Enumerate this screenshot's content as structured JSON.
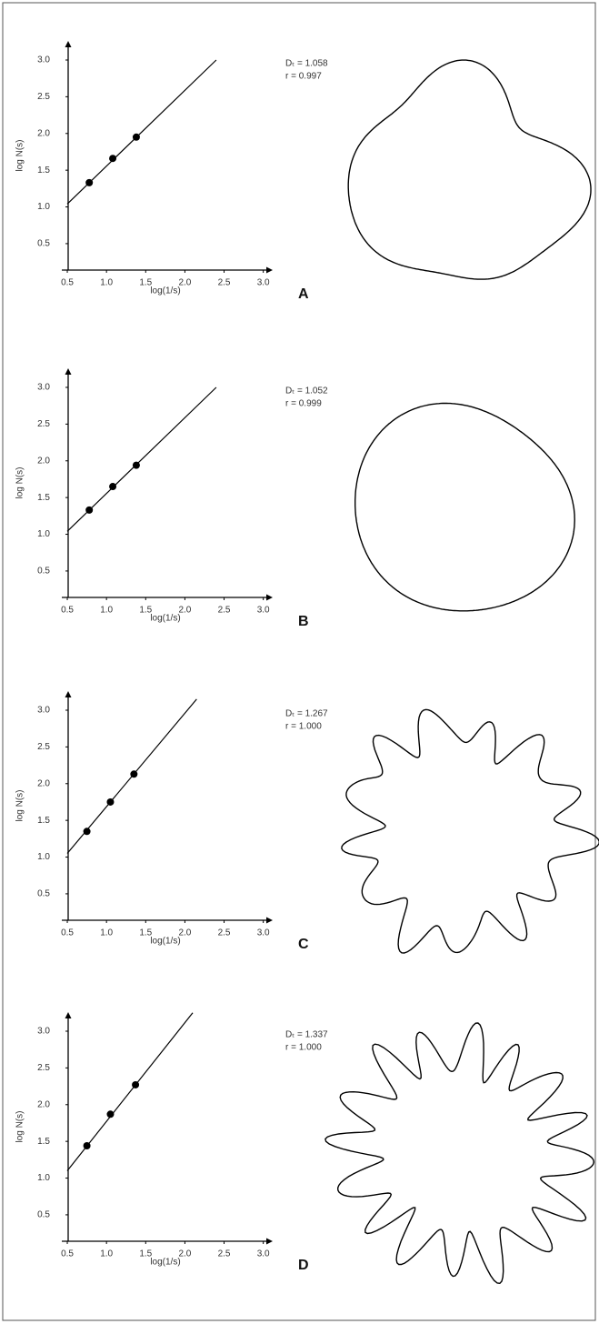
{
  "chart_data": [
    {
      "type": "scatter",
      "label": "A",
      "annotations": [
        "Dₜ = 1.058",
        "r = 0.997"
      ],
      "xlabel": "log(1/s)",
      "ylabel": "log N(s)",
      "series": [
        {
          "color": "#000000",
          "x": [
            0.78,
            1.08,
            1.38
          ],
          "values": [
            1.33,
            1.66,
            1.95
          ]
        }
      ],
      "fit": {
        "x": [
          0.5,
          2.4
        ],
        "values": [
          1.04,
          3.0
        ]
      },
      "xlim": [
        0.43,
        3.12
      ],
      "ylim": [
        0.14,
        3.26
      ],
      "xticks": [
        0.5,
        {
          "value": 1,
          "label": "1.0"
        },
        1.5,
        {
          "value": 2,
          "label": "2.0"
        },
        2.5,
        {
          "value": 3,
          "label": "3.0"
        }
      ],
      "yticks": [
        0.5,
        {
          "value": 1,
          "label": "1.0"
        },
        1.5,
        {
          "value": 2,
          "label": "2.0"
        },
        2.5,
        {
          "value": 3,
          "label": "3.0"
        }
      ]
    },
    {
      "type": "scatter",
      "label": "B",
      "annotations": [
        "Dₜ = 1.052",
        "r = 0.999"
      ],
      "xlabel": "log(1/s)",
      "ylabel": "log N(s)",
      "series": [
        {
          "color": "#000000",
          "x": [
            0.78,
            1.08,
            1.38
          ],
          "values": [
            1.33,
            1.65,
            1.94
          ]
        }
      ],
      "fit": {
        "x": [
          0.5,
          2.4
        ],
        "values": [
          1.04,
          3.0
        ]
      },
      "xlim": [
        0.43,
        3.12
      ],
      "ylim": [
        0.14,
        3.26
      ],
      "xticks": [
        0.5,
        {
          "value": 1,
          "label": "1.0"
        },
        1.5,
        {
          "value": 2,
          "label": "2.0"
        },
        2.5,
        {
          "value": 3,
          "label": "3.0"
        }
      ],
      "yticks": [
        0.5,
        {
          "value": 1,
          "label": "1.0"
        },
        1.5,
        {
          "value": 2,
          "label": "2.0"
        },
        2.5,
        {
          "value": 3,
          "label": "3.0"
        }
      ]
    },
    {
      "type": "scatter",
      "label": "C",
      "annotations": [
        "Dₜ = 1.267",
        "r = 1.000"
      ],
      "xlabel": "log(1/s)",
      "ylabel": "log N(s)",
      "series": [
        {
          "color": "#000000",
          "x": [
            0.75,
            1.05,
            1.35
          ],
          "values": [
            1.35,
            1.75,
            2.13
          ]
        }
      ],
      "fit": {
        "x": [
          0.5,
          2.15
        ],
        "values": [
          1.05,
          3.15
        ]
      },
      "xlim": [
        0.43,
        3.12
      ],
      "ylim": [
        0.14,
        3.26
      ],
      "xticks": [
        0.5,
        {
          "value": 1,
          "label": "1.0"
        },
        1.5,
        {
          "value": 2,
          "label": "2.0"
        },
        2.5,
        {
          "value": 3,
          "label": "3.0"
        }
      ],
      "yticks": [
        0.5,
        {
          "value": 1,
          "label": "1.0"
        },
        1.5,
        {
          "value": 2,
          "label": "2.0"
        },
        2.5,
        {
          "value": 3,
          "label": "3.0"
        }
      ]
    },
    {
      "type": "scatter",
      "label": "D",
      "annotations": [
        "Dₜ = 1.337",
        "r = 1.000"
      ],
      "xlabel": "log(1/s)",
      "ylabel": "log N(s)",
      "series": [
        {
          "color": "#000000",
          "x": [
            0.75,
            1.05,
            1.37
          ],
          "values": [
            1.44,
            1.87,
            2.27
          ]
        }
      ],
      "fit": {
        "x": [
          0.5,
          2.1
        ],
        "values": [
          1.1,
          3.25
        ]
      },
      "xlim": [
        0.43,
        3.12
      ],
      "ylim": [
        0.14,
        3.26
      ],
      "xticks": [
        0.5,
        {
          "value": 1,
          "label": "1.0"
        },
        1.5,
        {
          "value": 2,
          "label": "2.0"
        },
        2.5,
        {
          "value": 3,
          "label": "3.0"
        }
      ],
      "yticks": [
        0.5,
        {
          "value": 1,
          "label": "1.0"
        },
        1.5,
        {
          "value": 2,
          "label": "2.0"
        },
        2.5,
        {
          "value": 3,
          "label": "3.0"
        }
      ]
    }
  ]
}
